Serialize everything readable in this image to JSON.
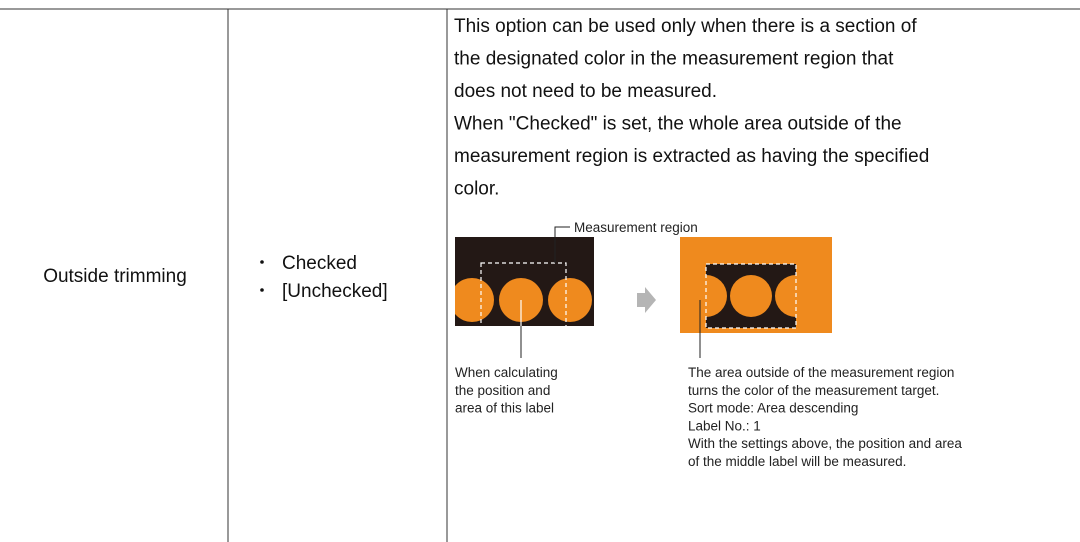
{
  "table": {
    "rows": [
      {
        "label": "Outside trimming",
        "options": [
          "Checked",
          "[Unchecked]"
        ],
        "description": [
          "This option can be used only when there is a section of",
          "the designated color in the measurement region that",
          "does not need to be measured.",
          "When \"Checked\" is set, the whole area outside of the",
          "measurement region is extracted as having the specified",
          "color."
        ],
        "figure": {
          "callout": "Measurement region",
          "left_caption": [
            "When calculating",
            "the position and",
            "area of this label"
          ],
          "right_caption": [
            "The area outside of the measurement region",
            "turns the color of the measurement target.",
            "Sort mode: Area descending",
            "Label No.: 1",
            "With the settings above, the position and area",
            "of the middle label will be measured."
          ]
        }
      }
    ]
  }
}
